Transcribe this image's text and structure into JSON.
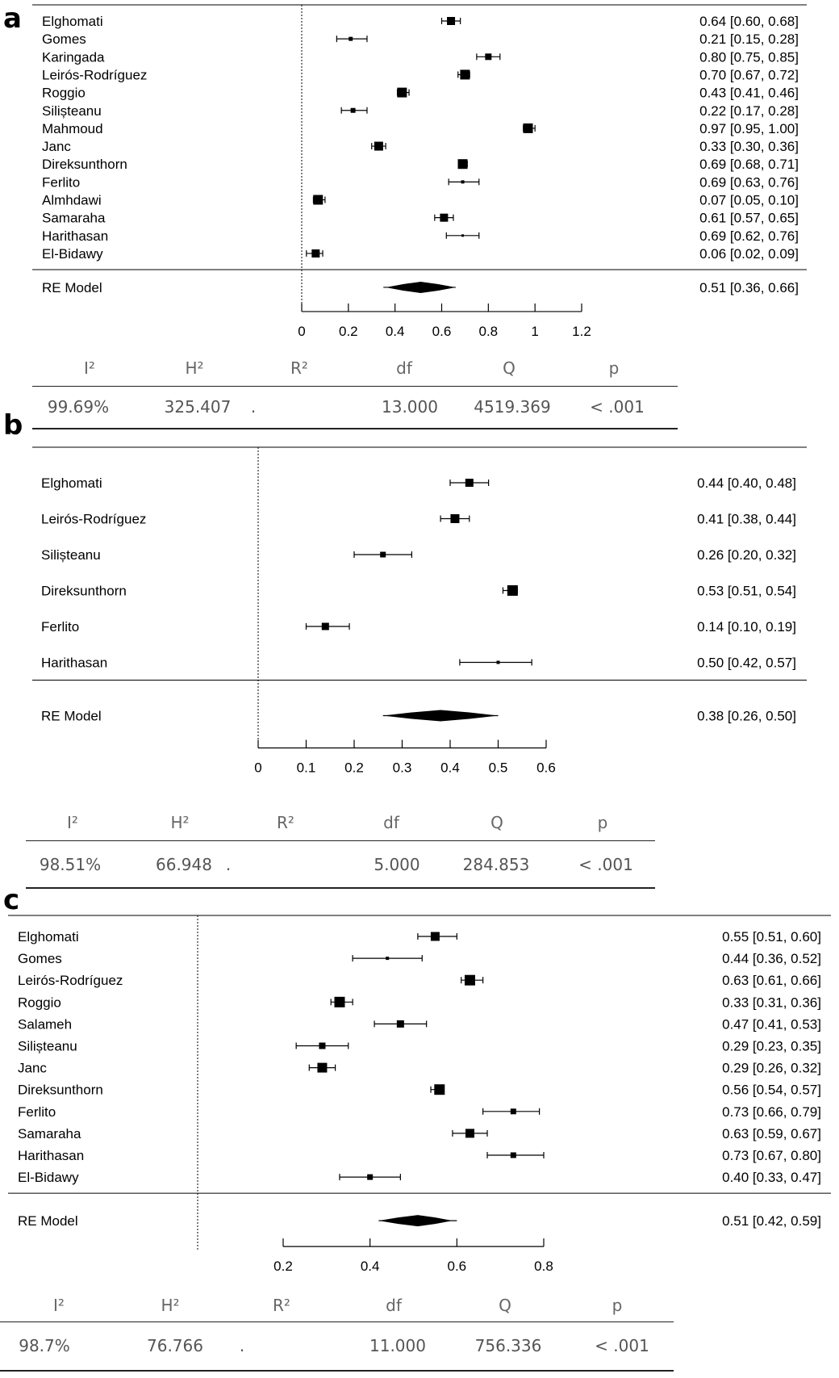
{
  "colors": {
    "ink": "#000000",
    "stats_text": "#666666"
  },
  "panels": [
    {
      "letter": "a",
      "chart_data": {
        "type": "forest",
        "xlim": [
          0,
          1.2
        ],
        "ticks": [
          0,
          0.2,
          0.4,
          0.6,
          0.8,
          1,
          1.2
        ],
        "tick_labels": [
          "0",
          "0.2",
          "0.4",
          "0.6",
          "0.8",
          "1",
          "1.2"
        ],
        "studies": [
          {
            "name": "Elghomati",
            "est": 0.64,
            "lo": 0.6,
            "hi": 0.68,
            "label": "0.64 [0.60, 0.68]",
            "w": 10
          },
          {
            "name": "Gomes",
            "est": 0.21,
            "lo": 0.15,
            "hi": 0.28,
            "label": "0.21 [0.15, 0.28]",
            "w": 5
          },
          {
            "name": "Karingada",
            "est": 0.8,
            "lo": 0.75,
            "hi": 0.85,
            "label": "0.80 [0.75, 0.85]",
            "w": 8
          },
          {
            "name": "Leirós-Rodríguez",
            "est": 0.7,
            "lo": 0.67,
            "hi": 0.72,
            "label": "0.70 [0.67, 0.72]",
            "w": 12
          },
          {
            "name": "Roggio",
            "est": 0.43,
            "lo": 0.41,
            "hi": 0.46,
            "label": "0.43 [0.41, 0.46]",
            "w": 12
          },
          {
            "name": "Silișteanu",
            "est": 0.22,
            "lo": 0.17,
            "hi": 0.28,
            "label": "0.22 [0.17, 0.28]",
            "w": 6
          },
          {
            "name": "Mahmoud",
            "est": 0.97,
            "lo": 0.95,
            "hi": 1.0,
            "label": "0.97 [0.95, 1.00]",
            "w": 12
          },
          {
            "name": "Janc",
            "est": 0.33,
            "lo": 0.3,
            "hi": 0.36,
            "label": "0.33 [0.30, 0.36]",
            "w": 11
          },
          {
            "name": "Direksunthorn",
            "est": 0.69,
            "lo": 0.68,
            "hi": 0.71,
            "label": "0.69 [0.68, 0.71]",
            "w": 12
          },
          {
            "name": "Ferlito",
            "est": 0.69,
            "lo": 0.63,
            "hi": 0.76,
            "label": "0.69 [0.63, 0.76]",
            "w": 4
          },
          {
            "name": "Almhdawi",
            "est": 0.07,
            "lo": 0.05,
            "hi": 0.1,
            "label": "0.07 [0.05, 0.10]",
            "w": 12
          },
          {
            "name": "Samaraha",
            "est": 0.61,
            "lo": 0.57,
            "hi": 0.65,
            "label": "0.61 [0.57, 0.65]",
            "w": 10
          },
          {
            "name": "Harithasan",
            "est": 0.69,
            "lo": 0.62,
            "hi": 0.76,
            "label": "0.69 [0.62, 0.76]",
            "w": 3
          },
          {
            "name": "El-Bidawy",
            "est": 0.06,
            "lo": 0.02,
            "hi": 0.09,
            "label": "0.06 [0.02, 0.09]",
            "w": 10
          }
        ],
        "summary": {
          "name": "RE Model",
          "est": 0.51,
          "lo": 0.36,
          "hi": 0.66,
          "label": "0.51 [0.36, 0.66]",
          "pi_lo": 0.35,
          "pi_hi": 0.66
        }
      },
      "stats": {
        "headers": [
          "I²",
          "H²",
          "R²",
          "df",
          "Q",
          "p"
        ],
        "values": [
          "99.69%",
          "325.407",
          ".",
          "13.000",
          "4519.369",
          "< .001"
        ]
      }
    },
    {
      "letter": "b",
      "chart_data": {
        "type": "forest",
        "xlim": [
          0,
          0.6
        ],
        "ticks": [
          0,
          0.1,
          0.2,
          0.3,
          0.4,
          0.5,
          0.6
        ],
        "tick_labels": [
          "0",
          "0.1",
          "0.2",
          "0.3",
          "0.4",
          "0.5",
          "0.6"
        ],
        "studies": [
          {
            "name": "Elghomati",
            "est": 0.44,
            "lo": 0.4,
            "hi": 0.48,
            "label": "0.44 [0.40, 0.48]",
            "w": 10
          },
          {
            "name": "Leirós-Rodríguez",
            "est": 0.41,
            "lo": 0.38,
            "hi": 0.44,
            "label": "0.41 [0.38, 0.44]",
            "w": 11
          },
          {
            "name": "Silișteanu",
            "est": 0.26,
            "lo": 0.2,
            "hi": 0.32,
            "label": "0.26 [0.20, 0.32]",
            "w": 7
          },
          {
            "name": "Direksunthorn",
            "est": 0.53,
            "lo": 0.51,
            "hi": 0.54,
            "label": "0.53 [0.51, 0.54]",
            "w": 13
          },
          {
            "name": "Ferlito",
            "est": 0.14,
            "lo": 0.1,
            "hi": 0.19,
            "label": "0.14 [0.10, 0.19]",
            "w": 9
          },
          {
            "name": "Harithasan",
            "est": 0.5,
            "lo": 0.42,
            "hi": 0.57,
            "label": "0.50 [0.42, 0.57]",
            "w": 4
          }
        ],
        "summary": {
          "name": "RE Model",
          "est": 0.38,
          "lo": 0.26,
          "hi": 0.5,
          "label": "0.38 [0.26, 0.50]",
          "pi_lo": 0.26,
          "pi_hi": 0.5
        }
      },
      "stats": {
        "headers": [
          "I²",
          "H²",
          "R²",
          "df",
          "Q",
          "p"
        ],
        "values": [
          "98.51%",
          "66.948",
          ".",
          "5.000",
          "284.853",
          "< .001"
        ]
      }
    },
    {
      "letter": "c",
      "chart_data": {
        "type": "forest",
        "xlim": [
          0.2,
          0.8
        ],
        "ticks": [
          0.2,
          0.4,
          0.6,
          0.8
        ],
        "tick_labels": [
          "0.2",
          "0.4",
          "0.6",
          "0.8"
        ],
        "studies": [
          {
            "name": "Elghomati",
            "est": 0.55,
            "lo": 0.51,
            "hi": 0.6,
            "label": "0.55 [0.51, 0.60]",
            "w": 11
          },
          {
            "name": "Gomes",
            "est": 0.44,
            "lo": 0.36,
            "hi": 0.52,
            "label": "0.44 [0.36, 0.52]",
            "w": 4
          },
          {
            "name": "Leirós-Rodríguez",
            "est": 0.63,
            "lo": 0.61,
            "hi": 0.66,
            "label": "0.63 [0.61, 0.66]",
            "w": 13
          },
          {
            "name": "Roggio",
            "est": 0.33,
            "lo": 0.31,
            "hi": 0.36,
            "label": "0.33 [0.31, 0.36]",
            "w": 13
          },
          {
            "name": "Salameh",
            "est": 0.47,
            "lo": 0.41,
            "hi": 0.53,
            "label": "0.47 [0.41, 0.53]",
            "w": 9
          },
          {
            "name": "Silișteanu",
            "est": 0.29,
            "lo": 0.23,
            "hi": 0.35,
            "label": "0.29 [0.23, 0.35]",
            "w": 8
          },
          {
            "name": "Janc",
            "est": 0.29,
            "lo": 0.26,
            "hi": 0.32,
            "label": "0.29 [0.26, 0.32]",
            "w": 12
          },
          {
            "name": "Direksunthorn",
            "est": 0.56,
            "lo": 0.54,
            "hi": 0.57,
            "label": "0.56 [0.54, 0.57]",
            "w": 13
          },
          {
            "name": "Ferlito",
            "est": 0.73,
            "lo": 0.66,
            "hi": 0.79,
            "label": "0.73 [0.66, 0.79]",
            "w": 7
          },
          {
            "name": "Samaraha",
            "est": 0.63,
            "lo": 0.59,
            "hi": 0.67,
            "label": "0.63 [0.59, 0.67]",
            "w": 11
          },
          {
            "name": "Harithasan",
            "est": 0.73,
            "lo": 0.67,
            "hi": 0.8,
            "label": "0.73 [0.67, 0.80]",
            "w": 7
          },
          {
            "name": "El-Bidawy",
            "est": 0.4,
            "lo": 0.33,
            "hi": 0.47,
            "label": "0.40 [0.33, 0.47]",
            "w": 7
          }
        ],
        "summary": {
          "name": "RE Model",
          "est": 0.51,
          "lo": 0.42,
          "hi": 0.59,
          "label": "0.51 [0.42, 0.59]",
          "pi_lo": 0.42,
          "pi_hi": 0.6
        }
      },
      "stats": {
        "headers": [
          "I²",
          "H²",
          "R²",
          "df",
          "Q",
          "p"
        ],
        "values": [
          "98.7%",
          "76.766",
          ".",
          "11.000",
          "756.336",
          "< .001"
        ]
      }
    }
  ]
}
